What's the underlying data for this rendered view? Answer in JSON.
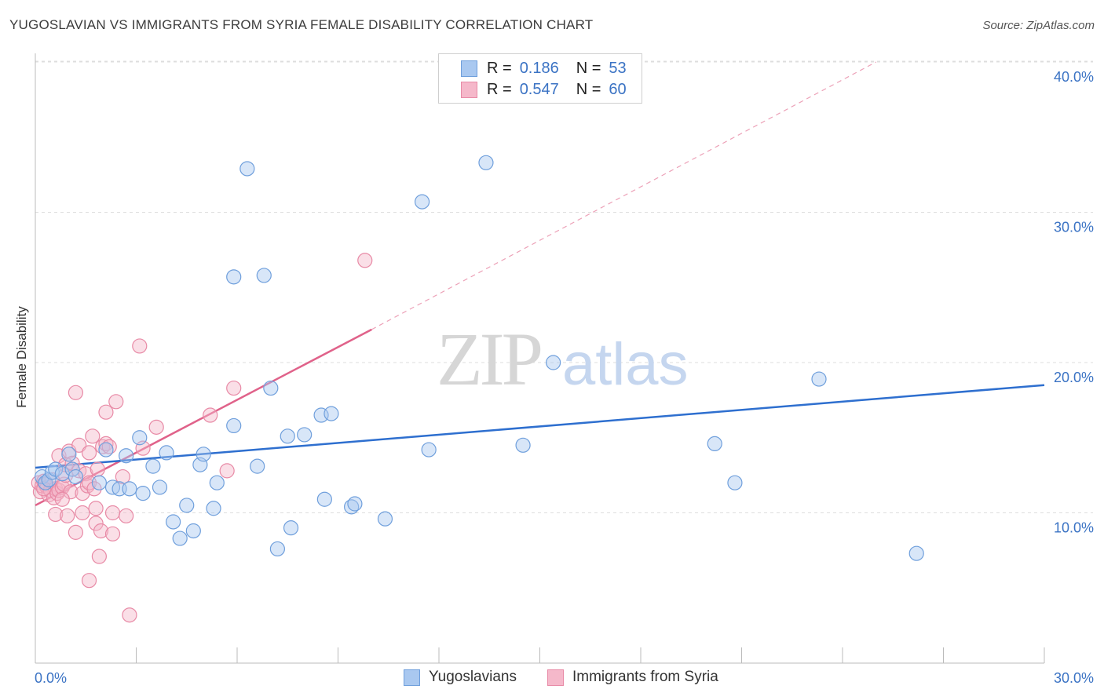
{
  "header": {
    "title": "YUGOSLAVIAN VS IMMIGRANTS FROM SYRIA FEMALE DISABILITY CORRELATION CHART",
    "source": "Source: ZipAtlas.com"
  },
  "watermark": {
    "zip": "ZIP",
    "atlas": "atlas"
  },
  "legend_top": {
    "rows": [
      {
        "r_label": "R =",
        "r_value": "0.186",
        "n_label": "N =",
        "n_value": "53"
      },
      {
        "r_label": "R =",
        "r_value": "0.547",
        "n_label": "N =",
        "n_value": "60"
      }
    ]
  },
  "colors": {
    "blue_fill": "#a9c8f0",
    "blue_stroke": "#6f9fdc",
    "blue_line": "#2e6fcf",
    "pink_fill": "#f5b8ca",
    "pink_stroke": "#e88aa6",
    "pink_line": "#e0628a",
    "axis_label": "#3b73c4",
    "grid": "#dddddd"
  },
  "chart_data": {
    "type": "scatter",
    "title": "YUGOSLAVIAN VS IMMIGRANTS FROM SYRIA FEMALE DISABILITY CORRELATION CHART",
    "xlabel": "",
    "ylabel": "Female Disability",
    "xlim": [
      0,
      30
    ],
    "ylim": [
      0,
      40.5
    ],
    "x_tick_labels": [
      "0.0%",
      "30.0%"
    ],
    "y_ticks": [
      10,
      20,
      30,
      40
    ],
    "y_tick_labels": [
      "10.0%",
      "20.0%",
      "30.0%",
      "40.0%"
    ],
    "grid": "horizontal dashed",
    "legend_position": "bottom",
    "series": [
      {
        "name": "Yugoslavians",
        "r": 0.186,
        "n": 53,
        "trend": {
          "x": [
            0,
            30
          ],
          "y": [
            13.0,
            18.5
          ],
          "style": "solid"
        },
        "points": [
          [
            0.2,
            12.4
          ],
          [
            0.3,
            12.0
          ],
          [
            0.4,
            12.2
          ],
          [
            0.5,
            12.7
          ],
          [
            0.6,
            12.9
          ],
          [
            0.8,
            12.6
          ],
          [
            1.1,
            12.9
          ],
          [
            1.2,
            12.4
          ],
          [
            1.0,
            13.9
          ],
          [
            1.9,
            12.0
          ],
          [
            2.1,
            14.2
          ],
          [
            2.3,
            11.7
          ],
          [
            2.5,
            11.6
          ],
          [
            2.7,
            13.8
          ],
          [
            2.8,
            11.6
          ],
          [
            3.1,
            15.0
          ],
          [
            3.2,
            11.3
          ],
          [
            3.5,
            13.1
          ],
          [
            3.7,
            11.7
          ],
          [
            3.9,
            14.0
          ],
          [
            4.1,
            9.4
          ],
          [
            4.3,
            8.3
          ],
          [
            4.5,
            10.5
          ],
          [
            4.7,
            8.8
          ],
          [
            4.9,
            13.2
          ],
          [
            5.0,
            13.9
          ],
          [
            5.3,
            10.3
          ],
          [
            5.4,
            12.0
          ],
          [
            5.9,
            25.7
          ],
          [
            5.9,
            15.8
          ],
          [
            6.3,
            32.9
          ],
          [
            6.6,
            13.1
          ],
          [
            6.8,
            25.8
          ],
          [
            7.0,
            18.3
          ],
          [
            7.2,
            7.6
          ],
          [
            7.5,
            15.1
          ],
          [
            7.6,
            9.0
          ],
          [
            8.0,
            15.2
          ],
          [
            8.5,
            16.5
          ],
          [
            8.8,
            16.6
          ],
          [
            8.6,
            10.9
          ],
          [
            9.4,
            10.4
          ],
          [
            9.5,
            10.6
          ],
          [
            10.4,
            9.6
          ],
          [
            11.5,
            30.7
          ],
          [
            11.7,
            14.2
          ],
          [
            13.4,
            33.3
          ],
          [
            14.5,
            14.5
          ],
          [
            15.4,
            20.0
          ],
          [
            20.2,
            14.6
          ],
          [
            20.8,
            12.0
          ],
          [
            23.3,
            18.9
          ],
          [
            26.2,
            7.3
          ]
        ]
      },
      {
        "name": "Immigrants from Syria",
        "r": 0.547,
        "n": 60,
        "trend": {
          "x": [
            0,
            10.0
          ],
          "y": [
            10.5,
            22.2
          ],
          "style": "solid",
          "extended_x": [
            10.0,
            25.0
          ],
          "extended_y": [
            22.2,
            40.0
          ],
          "extended_style": "dashed"
        },
        "points": [
          [
            0.1,
            12.0
          ],
          [
            0.15,
            11.4
          ],
          [
            0.2,
            11.8
          ],
          [
            0.25,
            12.1
          ],
          [
            0.3,
            11.9
          ],
          [
            0.35,
            11.7
          ],
          [
            0.4,
            11.2
          ],
          [
            0.45,
            11.5
          ],
          [
            0.5,
            12.2
          ],
          [
            0.55,
            11.0
          ],
          [
            0.6,
            11.6
          ],
          [
            0.6,
            9.9
          ],
          [
            0.65,
            11.3
          ],
          [
            0.7,
            11.5
          ],
          [
            0.7,
            13.8
          ],
          [
            0.8,
            11.7
          ],
          [
            0.85,
            11.9
          ],
          [
            0.9,
            12.5
          ],
          [
            0.9,
            13.2
          ],
          [
            0.95,
            9.8
          ],
          [
            1.0,
            14.1
          ],
          [
            1.05,
            11.4
          ],
          [
            1.1,
            13.3
          ],
          [
            1.2,
            8.7
          ],
          [
            1.2,
            18.0
          ],
          [
            1.3,
            12.8
          ],
          [
            1.3,
            14.5
          ],
          [
            1.4,
            10.0
          ],
          [
            1.4,
            11.3
          ],
          [
            1.5,
            12.6
          ],
          [
            1.55,
            11.8
          ],
          [
            1.6,
            12.0
          ],
          [
            1.6,
            14.0
          ],
          [
            1.6,
            5.5
          ],
          [
            1.7,
            15.1
          ],
          [
            1.75,
            11.6
          ],
          [
            1.8,
            10.3
          ],
          [
            1.8,
            9.3
          ],
          [
            1.85,
            12.9
          ],
          [
            1.9,
            7.1
          ],
          [
            1.95,
            8.8
          ],
          [
            2.0,
            14.4
          ],
          [
            2.1,
            14.6
          ],
          [
            2.1,
            16.7
          ],
          [
            2.2,
            14.4
          ],
          [
            2.3,
            10.0
          ],
          [
            2.3,
            8.6
          ],
          [
            2.4,
            17.4
          ],
          [
            2.6,
            12.4
          ],
          [
            2.7,
            9.8
          ],
          [
            2.8,
            3.2
          ],
          [
            3.1,
            21.1
          ],
          [
            3.2,
            14.3
          ],
          [
            3.6,
            15.7
          ],
          [
            5.2,
            16.5
          ],
          [
            5.7,
            12.8
          ],
          [
            5.9,
            18.3
          ],
          [
            9.8,
            26.8
          ],
          [
            0.25,
            11.6
          ],
          [
            0.8,
            10.9
          ]
        ]
      }
    ]
  }
}
